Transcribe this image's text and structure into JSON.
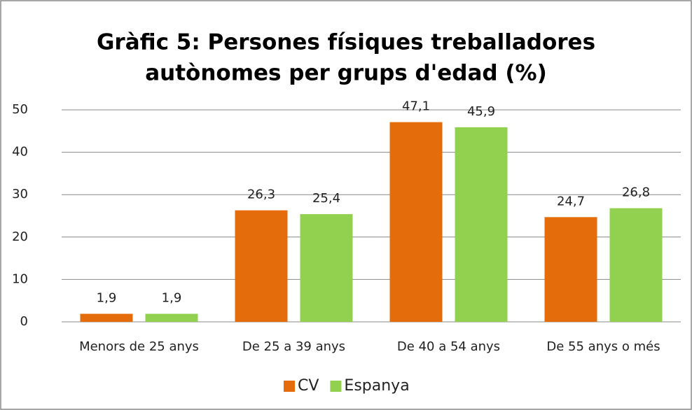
{
  "chart_data": {
    "type": "bar",
    "title": [
      "Gràfic 5: Persones físiques treballadores",
      "autònomes per grups d'edad (%)"
    ],
    "categories": [
      "Menors de 25 anys",
      "De 25 a 39 anys",
      "De 40 a 54 anys",
      "De 55 anys o més"
    ],
    "series": [
      {
        "name": "CV",
        "color": "#e46c0a",
        "values": [
          1.9,
          26.3,
          47.1,
          24.7
        ],
        "value_labels": [
          "1,9",
          "26,3",
          "47,1",
          "24,7"
        ]
      },
      {
        "name": "Espanya",
        "color": "#92d050",
        "values": [
          1.9,
          25.4,
          45.9,
          26.8
        ],
        "value_labels": [
          "1,9",
          "25,4",
          "45,9",
          "26,8"
        ]
      }
    ],
    "ylim": [
      0,
      50
    ],
    "yticks": [
      0,
      10,
      20,
      30,
      40,
      50
    ],
    "grid": true,
    "legend": "bottom"
  }
}
